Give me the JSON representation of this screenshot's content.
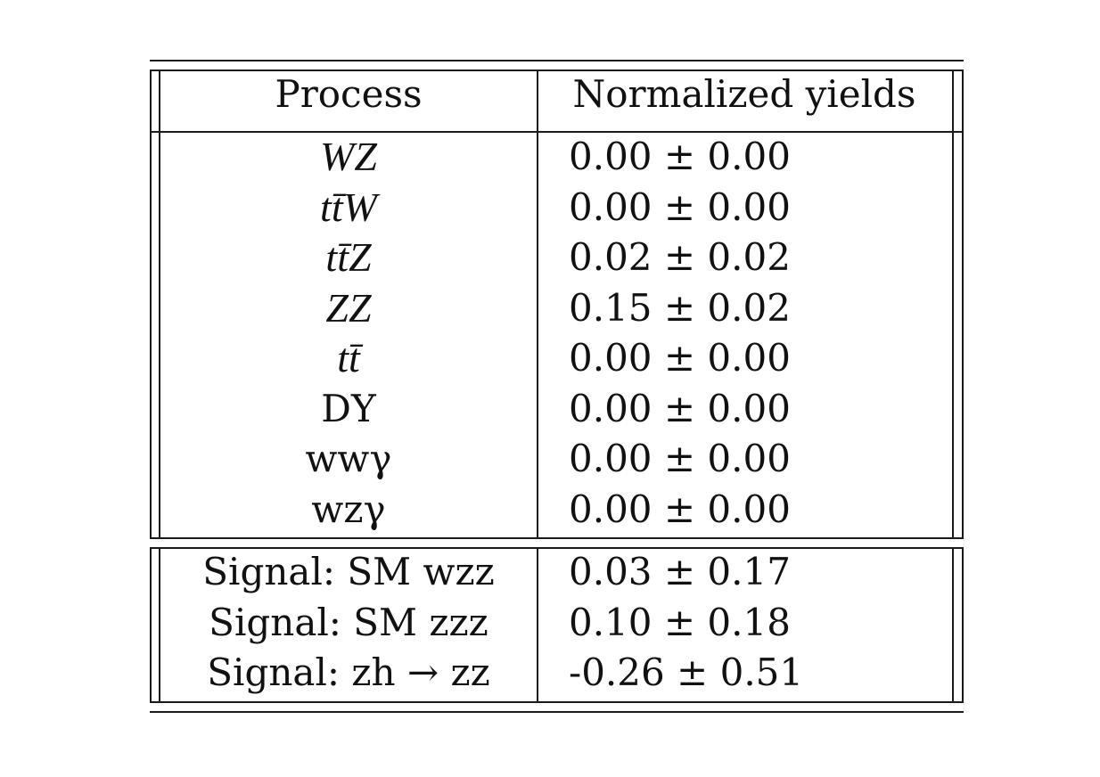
{
  "table": {
    "header": {
      "process": "Process",
      "yields": "Normalized yields"
    },
    "background_rows": [
      {
        "process": "WZ",
        "process_style": "math",
        "value": "0.00 ± 0.00"
      },
      {
        "process": "tt̄W",
        "process_style": "math",
        "value": "0.00 ± 0.00"
      },
      {
        "process": "tt̄Z",
        "process_style": "math",
        "value": "0.02 ± 0.02"
      },
      {
        "process": "ZZ",
        "process_style": "math",
        "value": "0.15 ± 0.02"
      },
      {
        "process": "tt̄",
        "process_style": "math",
        "value": "0.00 ± 0.00"
      },
      {
        "process": "DY",
        "process_style": "roman",
        "value": "0.00 ± 0.00"
      },
      {
        "process": "wwγ",
        "process_style": "roman",
        "value": "0.00 ± 0.00"
      },
      {
        "process": "wzγ",
        "process_style": "roman",
        "value": "0.00 ± 0.00"
      }
    ],
    "signal_rows": [
      {
        "process": "Signal: SM wzz",
        "value": "0.03 ± 0.17"
      },
      {
        "process": "Signal: SM zzz",
        "value": "0.10 ± 0.18"
      },
      {
        "process": "Signal: zh → zz",
        "value": "-0.26 ± 0.51"
      }
    ]
  }
}
